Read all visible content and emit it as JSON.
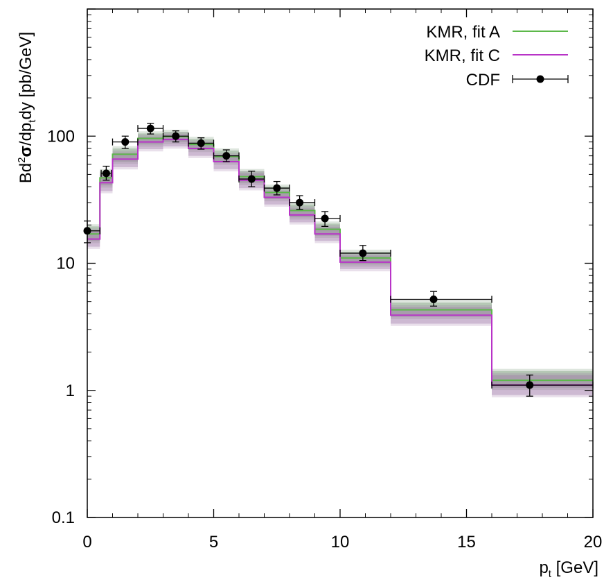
{
  "chart_data": {
    "type": "line",
    "title": "",
    "xlabel": {
      "main": "p",
      "sub": "t",
      "rest": " [GeV]"
    },
    "ylabel": {
      "p1": "Bd",
      "sup": "2",
      "sigma": "σ",
      "p2": "/dp",
      "sub": "t",
      "p3": "dy [pb/GeV]"
    },
    "xlim": [
      0,
      20
    ],
    "ylim": [
      0.1,
      1000
    ],
    "yscale": "log",
    "xticks": [
      0,
      5,
      10,
      15,
      20
    ],
    "xtick_labels": [
      "0",
      "5",
      "10",
      "15",
      "20"
    ],
    "yticks": [
      0.1,
      1,
      10,
      100
    ],
    "ytick_labels": [
      "0.1",
      "1",
      "10",
      "100"
    ],
    "legend_position": "top-right",
    "bin_edges": [
      0,
      0.5,
      1,
      2,
      3,
      4,
      5,
      6,
      7,
      8,
      9,
      10,
      12,
      16,
      20
    ],
    "series": [
      {
        "name": "KMR, fit A",
        "color": "#5cb84a",
        "band_color": "#6a8f6a",
        "values": [
          17,
          47,
          72,
          96,
          99,
          86,
          69,
          48,
          36,
          26,
          18.5,
          11,
          4.3,
          1.2
        ],
        "band_low": [
          15,
          41,
          63,
          86,
          90,
          78,
          62,
          43,
          32,
          23,
          16.5,
          9.8,
          3.8,
          1.05
        ],
        "band_high": [
          19.5,
          53,
          80,
          105,
          108,
          95,
          77,
          53,
          40,
          29,
          20.5,
          12.3,
          4.9,
          1.42
        ]
      },
      {
        "name": "KMR, fit C",
        "color": "#b833c7",
        "band_color": "#9a70a4",
        "values": [
          15.5,
          43,
          66,
          90,
          94,
          80,
          63,
          45,
          33,
          24,
          17,
          10.2,
          3.9,
          1.1
        ],
        "band_low": [
          13.5,
          37,
          57,
          79,
          83,
          70,
          55,
          39,
          29,
          21,
          15,
          9.0,
          3.35,
          0.92
        ],
        "band_high": [
          18,
          50,
          74,
          99,
          103,
          89,
          71,
          51,
          37,
          27,
          19.2,
          11.5,
          4.5,
          1.32
        ]
      },
      {
        "name": "CDF",
        "color": "#000000",
        "points": [
          {
            "x": 0.0,
            "y": 18,
            "xerr": [
              0,
              0.5
            ],
            "yerr": [
              14.5,
              21.5
            ]
          },
          {
            "x": 0.75,
            "y": 51,
            "xerr": [
              0.55,
              0.95
            ],
            "yerr": [
              45,
              58
            ]
          },
          {
            "x": 1.5,
            "y": 90,
            "xerr": [
              1.0,
              2.0
            ],
            "yerr": [
              80,
              100
            ]
          },
          {
            "x": 2.5,
            "y": 115,
            "xerr": [
              2.0,
              3.0
            ],
            "yerr": [
              104,
              126
            ]
          },
          {
            "x": 3.5,
            "y": 100,
            "xerr": [
              3.0,
              4.0
            ],
            "yerr": [
              90,
              110
            ]
          },
          {
            "x": 4.5,
            "y": 88,
            "xerr": [
              4.0,
              5.0
            ],
            "yerr": [
              79,
              97
            ]
          },
          {
            "x": 5.5,
            "y": 70,
            "xerr": [
              5.0,
              6.0
            ],
            "yerr": [
              63,
              78
            ]
          },
          {
            "x": 6.5,
            "y": 46,
            "xerr": [
              6.0,
              7.0
            ],
            "yerr": [
              40,
              53
            ]
          },
          {
            "x": 7.5,
            "y": 39,
            "xerr": [
              7.0,
              8.0
            ],
            "yerr": [
              34.5,
              44
            ]
          },
          {
            "x": 8.4,
            "y": 30,
            "xerr": [
              8.0,
              9.0
            ],
            "yerr": [
              26.5,
              34
            ]
          },
          {
            "x": 9.4,
            "y": 22.5,
            "xerr": [
              9.0,
              10.0
            ],
            "yerr": [
              19.5,
              25.5
            ]
          },
          {
            "x": 10.9,
            "y": 12,
            "xerr": [
              10.0,
              12.0
            ],
            "yerr": [
              10.5,
              13.8
            ]
          },
          {
            "x": 13.7,
            "y": 5.2,
            "xerr": [
              12.0,
              16.0
            ],
            "yerr": [
              4.6,
              6.0
            ]
          },
          {
            "x": 17.5,
            "y": 1.1,
            "xerr": [
              16.0,
              20.0
            ],
            "yerr": [
              0.9,
              1.32
            ]
          }
        ]
      }
    ]
  }
}
